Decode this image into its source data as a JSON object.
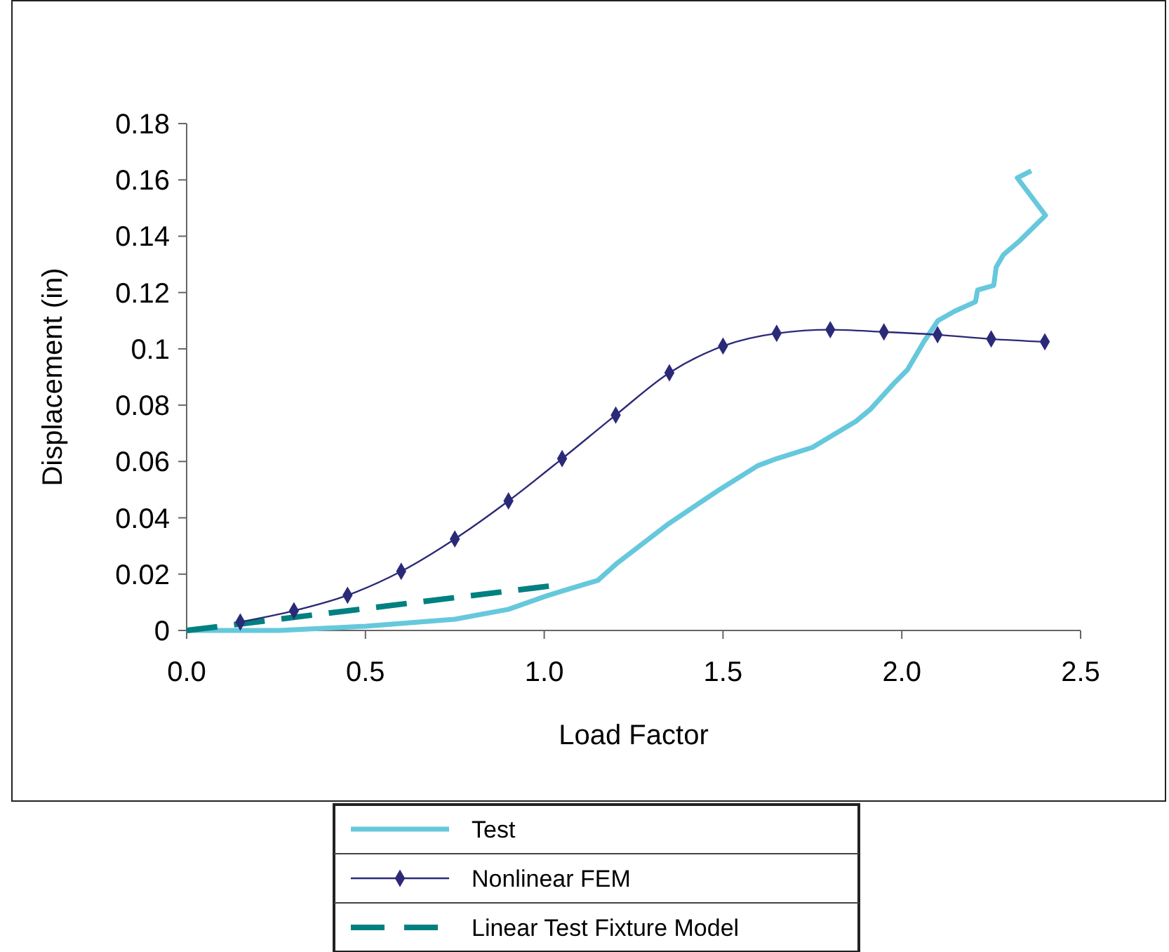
{
  "chart_data": {
    "type": "line",
    "xlabel": "Load Factor",
    "ylabel": "Displacement (in)",
    "xlim": [
      0,
      2.5
    ],
    "xticks": [
      {
        "value": 0,
        "label": "0.0"
      },
      {
        "value": 0.5,
        "label": "0.5"
      },
      {
        "value": 1,
        "label": "1.0"
      },
      {
        "value": 1.5,
        "label": "1.5"
      },
      {
        "value": 2,
        "label": "2.0"
      },
      {
        "value": 2.5,
        "label": "2.5"
      }
    ],
    "ylim": [
      0,
      0.18
    ],
    "yticks": [
      0,
      0.02,
      0.04,
      0.06,
      0.08,
      0.1,
      0.12,
      0.14,
      0.16,
      0.18
    ],
    "grid": false,
    "legend": "bottom",
    "series": [
      {
        "name": "Test",
        "color": "#66c8dc",
        "marker": "none",
        "line_style": "solid",
        "x": [
          0,
          0.26,
          0.5,
          0.75,
          0.9,
          1.0,
          1.05,
          1.15,
          1.205,
          1.349,
          1.49,
          1.597,
          1.65,
          1.75,
          1.872,
          1.911,
          1.977,
          2.016,
          2.062,
          2.101,
          2.147,
          2.206,
          2.212,
          2.257,
          2.264,
          2.284,
          2.33,
          2.369,
          2.402,
          2.323,
          2.362
        ],
        "values": [
          0,
          0,
          0.0015,
          0.004,
          0.0075,
          0.012,
          0.014,
          0.0178,
          0.024,
          0.038,
          0.05,
          0.0585,
          0.061,
          0.065,
          0.0743,
          0.0784,
          0.0876,
          0.0926,
          0.1026,
          0.11,
          0.1133,
          0.1167,
          0.1209,
          0.1225,
          0.129,
          0.1334,
          0.1384,
          0.1433,
          0.1474,
          0.1607,
          0.1632
        ]
      },
      {
        "name": "Nonlinear FEM",
        "color": "#2b2a78",
        "marker": "diamond",
        "line_style": "solid",
        "x": [
          0.15,
          0.3,
          0.45,
          0.6,
          0.75,
          0.9,
          1.05,
          1.2,
          1.35,
          1.5,
          1.65,
          1.8,
          1.95,
          2.1,
          2.25,
          2.4
        ],
        "values": [
          0.003,
          0.007,
          0.0125,
          0.021,
          0.0325,
          0.046,
          0.061,
          0.0765,
          0.0915,
          0.101,
          0.1055,
          0.1068,
          0.106,
          0.105,
          0.1035,
          0.1025
        ]
      },
      {
        "name": "Linear Test Fixture Model",
        "color": "#008080",
        "marker": "none",
        "line_style": "dashed",
        "x": [
          0,
          1.03
        ],
        "values": [
          0,
          0.016
        ]
      }
    ]
  }
}
